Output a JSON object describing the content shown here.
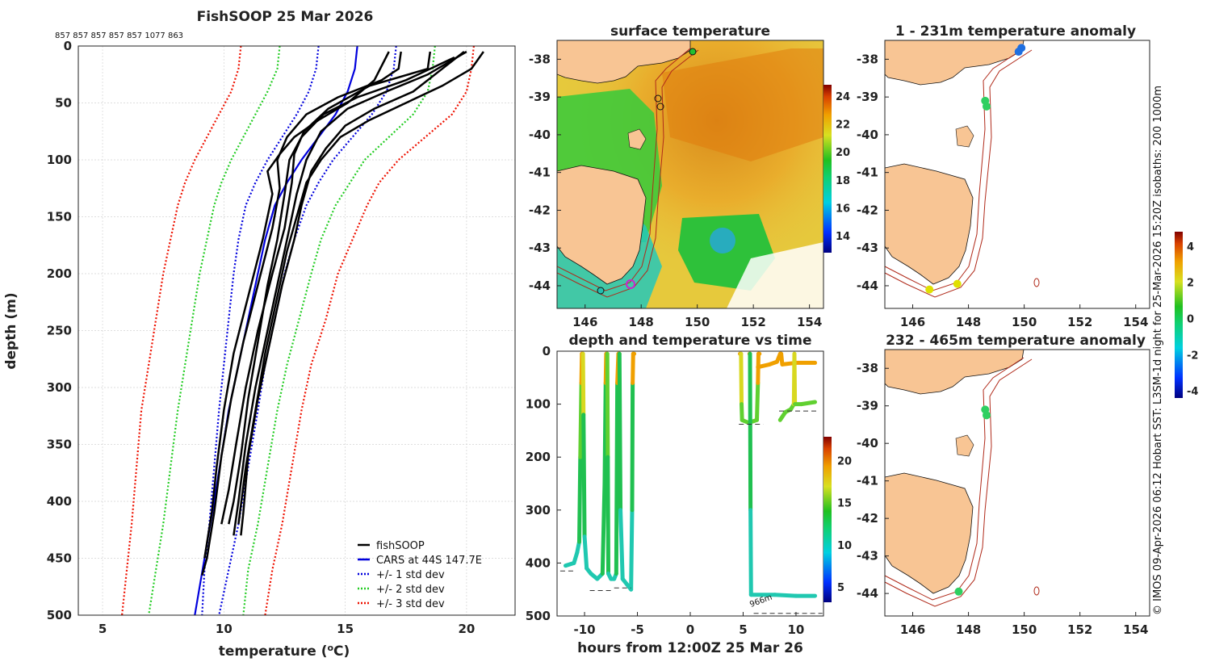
{
  "chart_data": [
    {
      "type": "line",
      "title": "FishSOOP 25 Mar 2026",
      "top_annotation": "857 857 857 857 857 1077 863",
      "xlabel": "temperature (°C)",
      "ylabel": "depth (m)",
      "xlim": [
        4,
        22
      ],
      "ylim": [
        500,
        0
      ],
      "xticks": [
        5,
        10,
        15,
        20
      ],
      "yticks": [
        0,
        50,
        100,
        150,
        200,
        250,
        300,
        350,
        400,
        450,
        500
      ],
      "legend": [
        "fishSOOP",
        "CARS at 44S 147.7E",
        "+/- 1 std dev",
        "+/- 2 std dev",
        "+/- 3 std dev"
      ],
      "legend_position": "bottom-right",
      "series": [
        {
          "name": "CARS at 44S 147.7E",
          "color": "#0000dd",
          "style": "solid",
          "points": [
            [
              15.5,
              0
            ],
            [
              15.4,
              20
            ],
            [
              15.1,
              40
            ],
            [
              14.6,
              60
            ],
            [
              13.9,
              80
            ],
            [
              13.2,
              100
            ],
            [
              12.6,
              120
            ],
            [
              12.1,
              140
            ],
            [
              11.7,
              170
            ],
            [
              11.4,
              200
            ],
            [
              11.1,
              230
            ],
            [
              10.8,
              260
            ],
            [
              10.5,
              290
            ],
            [
              10.2,
              320
            ],
            [
              9.9,
              360
            ],
            [
              9.6,
              400
            ],
            [
              9.2,
              450
            ],
            [
              8.8,
              500
            ]
          ]
        },
        {
          "name": "-1 std",
          "color": "#0000dd",
          "style": "dotted",
          "points": [
            [
              13.9,
              0
            ],
            [
              13.8,
              20
            ],
            [
              13.5,
              40
            ],
            [
              13.0,
              60
            ],
            [
              12.4,
              80
            ],
            [
              11.8,
              100
            ],
            [
              11.3,
              120
            ],
            [
              10.9,
              140
            ],
            [
              10.6,
              170
            ],
            [
              10.4,
              200
            ],
            [
              10.2,
              240
            ],
            [
              10.0,
              280
            ],
            [
              9.8,
              320
            ],
            [
              9.6,
              370
            ],
            [
              9.4,
              420
            ],
            [
              9.2,
              460
            ],
            [
              9.1,
              500
            ]
          ]
        },
        {
          "name": "+1 std",
          "color": "#0000dd",
          "style": "dotted",
          "points": [
            [
              17.1,
              0
            ],
            [
              17.0,
              20
            ],
            [
              16.7,
              40
            ],
            [
              16.1,
              60
            ],
            [
              15.3,
              80
            ],
            [
              14.5,
              100
            ],
            [
              13.9,
              120
            ],
            [
              13.4,
              140
            ],
            [
              12.9,
              170
            ],
            [
              12.5,
              200
            ],
            [
              12.1,
              240
            ],
            [
              11.7,
              280
            ],
            [
              11.4,
              320
            ],
            [
              11.0,
              370
            ],
            [
              10.6,
              420
            ],
            [
              10.2,
              460
            ],
            [
              9.8,
              500
            ]
          ]
        },
        {
          "name": "-2 std",
          "color": "#22cc22",
          "style": "dotted",
          "points": [
            [
              12.3,
              0
            ],
            [
              12.2,
              20
            ],
            [
              11.8,
              40
            ],
            [
              11.3,
              60
            ],
            [
              10.8,
              80
            ],
            [
              10.3,
              100
            ],
            [
              9.9,
              120
            ],
            [
              9.6,
              140
            ],
            [
              9.3,
              170
            ],
            [
              9.0,
              200
            ],
            [
              8.7,
              240
            ],
            [
              8.4,
              280
            ],
            [
              8.1,
              320
            ],
            [
              7.8,
              370
            ],
            [
              7.5,
              420
            ],
            [
              7.2,
              460
            ],
            [
              6.9,
              500
            ]
          ]
        },
        {
          "name": "+2 std",
          "color": "#22cc22",
          "style": "dotted",
          "points": [
            [
              18.7,
              0
            ],
            [
              18.6,
              20
            ],
            [
              18.4,
              40
            ],
            [
              17.8,
              60
            ],
            [
              16.8,
              80
            ],
            [
              15.8,
              100
            ],
            [
              15.2,
              120
            ],
            [
              14.6,
              140
            ],
            [
              14.0,
              170
            ],
            [
              13.6,
              200
            ],
            [
              13.1,
              240
            ],
            [
              12.6,
              280
            ],
            [
              12.2,
              320
            ],
            [
              11.8,
              370
            ],
            [
              11.4,
              420
            ],
            [
              11.0,
              460
            ],
            [
              10.8,
              500
            ]
          ]
        },
        {
          "name": "-3 std",
          "color": "#ee1100",
          "style": "dotted",
          "points": [
            [
              10.7,
              0
            ],
            [
              10.6,
              20
            ],
            [
              10.3,
              40
            ],
            [
              9.8,
              60
            ],
            [
              9.3,
              80
            ],
            [
              8.8,
              100
            ],
            [
              8.4,
              120
            ],
            [
              8.1,
              140
            ],
            [
              7.8,
              170
            ],
            [
              7.5,
              200
            ],
            [
              7.2,
              240
            ],
            [
              6.9,
              280
            ],
            [
              6.6,
              320
            ],
            [
              6.4,
              370
            ],
            [
              6.2,
              420
            ],
            [
              6.0,
              460
            ],
            [
              5.8,
              500
            ]
          ]
        },
        {
          "name": "+3 std",
          "color": "#ee1100",
          "style": "dotted",
          "points": [
            [
              20.3,
              0
            ],
            [
              20.2,
              20
            ],
            [
              20.0,
              40
            ],
            [
              19.4,
              60
            ],
            [
              18.3,
              80
            ],
            [
              17.2,
              100
            ],
            [
              16.4,
              120
            ],
            [
              15.9,
              140
            ],
            [
              15.3,
              170
            ],
            [
              14.7,
              200
            ],
            [
              14.2,
              240
            ],
            [
              13.6,
              280
            ],
            [
              13.2,
              320
            ],
            [
              12.8,
              370
            ],
            [
              12.4,
              420
            ],
            [
              12.0,
              460
            ],
            [
              11.7,
              500
            ]
          ]
        }
      ],
      "profiles": [
        [
          [
            20.7,
            5
          ],
          [
            20.2,
            20
          ],
          [
            19.0,
            35
          ],
          [
            17.5,
            50
          ],
          [
            16.0,
            65
          ],
          [
            14.8,
            80
          ],
          [
            14.0,
            100
          ],
          [
            13.4,
            120
          ],
          [
            13.0,
            150
          ],
          [
            12.6,
            180
          ],
          [
            12.2,
            220
          ],
          [
            11.7,
            270
          ],
          [
            11.3,
            320
          ],
          [
            10.9,
            370
          ],
          [
            10.6,
            420
          ]
        ],
        [
          [
            19.9,
            5
          ],
          [
            19.0,
            20
          ],
          [
            17.8,
            40
          ],
          [
            16.2,
            55
          ],
          [
            15.0,
            70
          ],
          [
            14.2,
            90
          ],
          [
            13.6,
            110
          ],
          [
            13.2,
            140
          ],
          [
            12.9,
            170
          ],
          [
            12.4,
            210
          ],
          [
            11.9,
            260
          ],
          [
            11.4,
            310
          ],
          [
            11.0,
            360
          ],
          [
            10.8,
            410
          ],
          [
            10.7,
            430
          ]
        ],
        [
          [
            20.0,
            5
          ],
          [
            18.4,
            25
          ],
          [
            16.7,
            40
          ],
          [
            15.1,
            55
          ],
          [
            14.0,
            75
          ],
          [
            13.4,
            100
          ],
          [
            13.0,
            130
          ],
          [
            12.7,
            160
          ],
          [
            12.3,
            200
          ],
          [
            11.8,
            250
          ],
          [
            11.3,
            300
          ],
          [
            10.9,
            350
          ],
          [
            10.6,
            400
          ],
          [
            10.4,
            430
          ]
        ],
        [
          [
            19.5,
            10
          ],
          [
            17.5,
            30
          ],
          [
            15.5,
            45
          ],
          [
            14.1,
            60
          ],
          [
            13.2,
            80
          ],
          [
            12.7,
            100
          ],
          [
            12.5,
            130
          ],
          [
            12.2,
            170
          ],
          [
            11.8,
            210
          ],
          [
            11.4,
            260
          ],
          [
            11.0,
            310
          ],
          [
            10.7,
            360
          ],
          [
            10.4,
            400
          ],
          [
            10.2,
            420
          ]
        ],
        [
          [
            18.5,
            5
          ],
          [
            18.4,
            20
          ],
          [
            16.0,
            35
          ],
          [
            14.3,
            55
          ],
          [
            13.3,
            75
          ],
          [
            12.9,
            95
          ],
          [
            12.8,
            120
          ],
          [
            12.5,
            160
          ],
          [
            12.0,
            200
          ],
          [
            11.4,
            250
          ],
          [
            10.9,
            300
          ],
          [
            10.5,
            350
          ],
          [
            10.2,
            390
          ],
          [
            9.9,
            420
          ]
        ],
        [
          [
            17.3,
            5
          ],
          [
            17.2,
            20
          ],
          [
            16.5,
            30
          ],
          [
            14.7,
            45
          ],
          [
            13.4,
            60
          ],
          [
            12.6,
            80
          ],
          [
            12.2,
            100
          ],
          [
            12.3,
            125
          ],
          [
            12.0,
            160
          ],
          [
            11.4,
            210
          ],
          [
            10.8,
            260
          ],
          [
            10.3,
            310
          ],
          [
            9.9,
            360
          ],
          [
            9.6,
            410
          ],
          [
            9.3,
            450
          ],
          [
            9.1,
            465
          ]
        ],
        [
          [
            16.8,
            5
          ],
          [
            16.2,
            30
          ],
          [
            15.1,
            50
          ],
          [
            13.9,
            65
          ],
          [
            12.9,
            80
          ],
          [
            12.3,
            95
          ],
          [
            11.8,
            110
          ],
          [
            12.0,
            130
          ],
          [
            11.6,
            170
          ],
          [
            11.0,
            220
          ],
          [
            10.4,
            270
          ],
          [
            10.0,
            320
          ],
          [
            9.7,
            370
          ],
          [
            9.5,
            410
          ],
          [
            9.2,
            450
          ]
        ]
      ]
    },
    {
      "type": "heatmap",
      "title": "surface temperature",
      "xticks": [
        "146",
        "148",
        "150",
        "152",
        "154"
      ],
      "yticks": [
        "-38",
        "-39",
        "-40",
        "-41",
        "-42",
        "-43",
        "-44"
      ],
      "xlim": [
        145,
        154.5
      ],
      "ylim": [
        -44.6,
        -37.5
      ],
      "colorbar_ticks": [
        "24",
        "22",
        "20",
        "18",
        "16",
        "14"
      ],
      "colorbar_range": [
        12.8,
        24.8
      ]
    },
    {
      "type": "scatter",
      "title": "1 - 231m temperature anomaly",
      "xticks": [
        "146",
        "148",
        "150",
        "152",
        "154"
      ],
      "yticks": [
        "-38",
        "-39",
        "-40",
        "-41",
        "-42",
        "-43",
        "-44"
      ],
      "colorbar_ticks": [
        "4",
        "2",
        "0",
        "-2",
        "-4"
      ],
      "colorbar_range": [
        -4.4,
        4.8
      ],
      "points": [
        {
          "lon": 149.9,
          "lat": -37.7,
          "color": "#1f6fe0"
        },
        {
          "lon": 149.8,
          "lat": -37.8,
          "color": "#1f6fe0"
        },
        {
          "lon": 148.6,
          "lat": -39.1,
          "color": "#2ecf60"
        },
        {
          "lon": 148.65,
          "lat": -39.25,
          "color": "#2ecf60"
        },
        {
          "lon": 146.6,
          "lat": -44.1,
          "color": "#e0e000"
        },
        {
          "lon": 147.6,
          "lat": -43.95,
          "color": "#e0e000"
        }
      ]
    },
    {
      "type": "line",
      "title": "depth and temperature vs time",
      "xlabel": "hours from 12:00Z 25 Mar 26",
      "xticks": [
        "-10",
        "-5",
        "0",
        "5",
        "10"
      ],
      "yticks": [
        "0",
        "100",
        "200",
        "300",
        "400",
        "500"
      ],
      "xlim": [
        -12.6,
        12.6
      ],
      "ylim": [
        500,
        0
      ],
      "colorbar_ticks": [
        "20",
        "15",
        "10",
        "5"
      ],
      "colorbar_range": [
        3.2,
        22.8
      ],
      "annotation": "966m"
    },
    {
      "type": "scatter",
      "title": "232 - 465m temperature anomaly",
      "xticks": [
        "146",
        "148",
        "150",
        "152",
        "154"
      ],
      "yticks": [
        "-38",
        "-39",
        "-40",
        "-41",
        "-42",
        "-43",
        "-44"
      ],
      "points": [
        {
          "lon": 148.6,
          "lat": -39.1,
          "color": "#2ecf60"
        },
        {
          "lon": 148.65,
          "lat": -39.25,
          "color": "#2ecf60"
        },
        {
          "lon": 147.65,
          "lat": -43.95,
          "color": "#2ecf60"
        }
      ]
    }
  ],
  "side_caption": "© IMOS 09-Apr-2026 06:12 Hobart SST: L3SM-1d night for 25-Mar-2026 15:20Z isobaths: 200  1000m",
  "colors": {
    "land": "#f8c594",
    "coast": "#111111",
    "isobath": "#b02a1a"
  }
}
